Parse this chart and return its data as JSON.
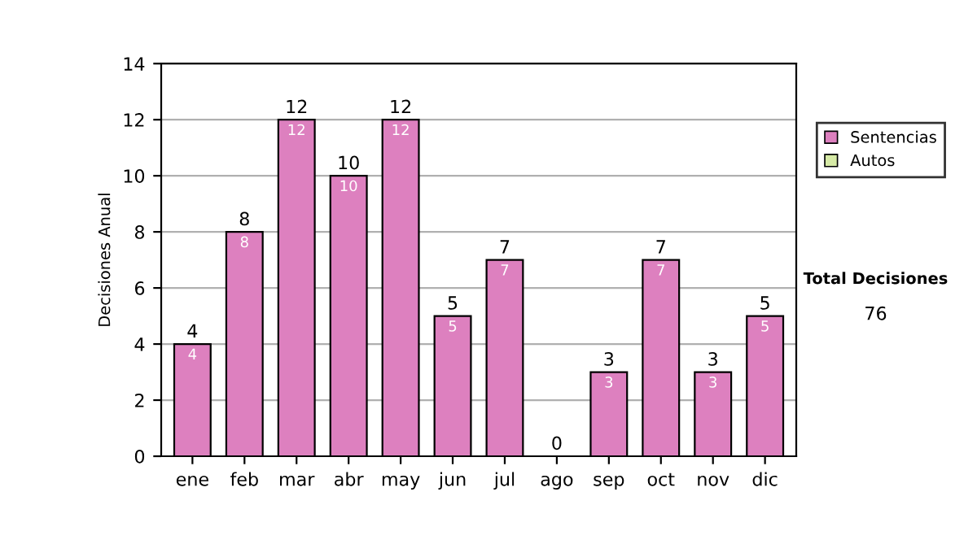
{
  "chart_data": {
    "type": "bar",
    "stacked": true,
    "ylabel": "Decisiones Anual",
    "categories": [
      "ene",
      "feb",
      "mar",
      "abr",
      "may",
      "jun",
      "jul",
      "ago",
      "sep",
      "oct",
      "nov",
      "dic"
    ],
    "series": [
      {
        "name": "Sentencias",
        "color": "#dd80bf",
        "values": [
          4,
          8,
          12,
          10,
          12,
          5,
          7,
          0,
          3,
          7,
          3,
          5
        ],
        "value_labels": [
          "4",
          "8",
          "12",
          "10",
          "12",
          "5",
          "7",
          null,
          "3",
          "7",
          "3",
          "5"
        ]
      },
      {
        "name": "Autos",
        "color": "#d6eaa6",
        "values": [
          0,
          0,
          0,
          0,
          0,
          0,
          0,
          0,
          0,
          0,
          0,
          0
        ]
      }
    ],
    "totals": [
      "4",
      "8",
      "12",
      "10",
      "12",
      "5",
      "7",
      "0",
      "3",
      "7",
      "3",
      "5"
    ],
    "ylim": [
      0,
      14
    ],
    "yticks": [
      0,
      2,
      4,
      6,
      8,
      10,
      12,
      14
    ],
    "grid": "y",
    "legend": "right",
    "annotations": [
      "Total Decisiones",
      "76"
    ]
  }
}
